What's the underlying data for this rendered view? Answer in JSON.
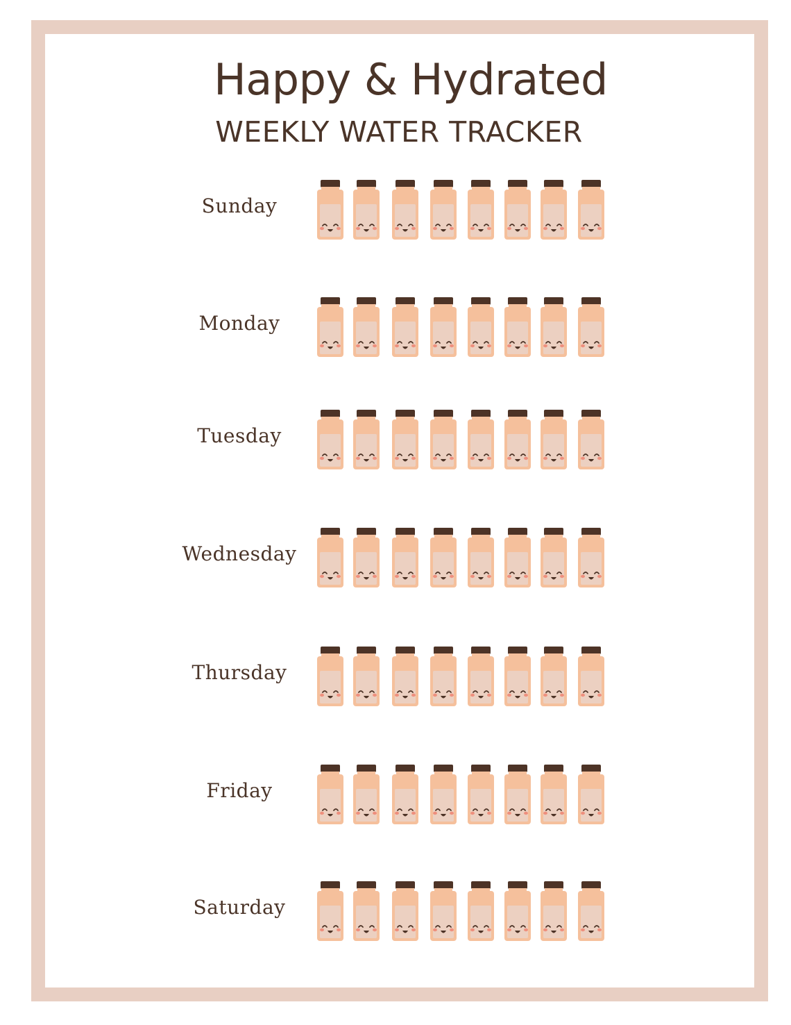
{
  "header": {
    "title": "Happy & Hydrated",
    "subtitle": "WEEKLY WATER TRACKER"
  },
  "colors": {
    "border": "#e8cfc3",
    "text": "#4a3428",
    "bottle_cap": "#4d3326",
    "bottle_body": "#f5c09c",
    "bottle_window": "#ecd0c1",
    "cheek": "#ee8f7d"
  },
  "days": [
    {
      "label": "Sunday"
    },
    {
      "label": "Monday"
    },
    {
      "label": "Tuesday"
    },
    {
      "label": "Wednesday"
    },
    {
      "label": "Thursday"
    },
    {
      "label": "Friday"
    },
    {
      "label": "Saturday"
    }
  ],
  "bottles_per_day": 8,
  "bottle_icon": "smiling-water-bottle-icon"
}
